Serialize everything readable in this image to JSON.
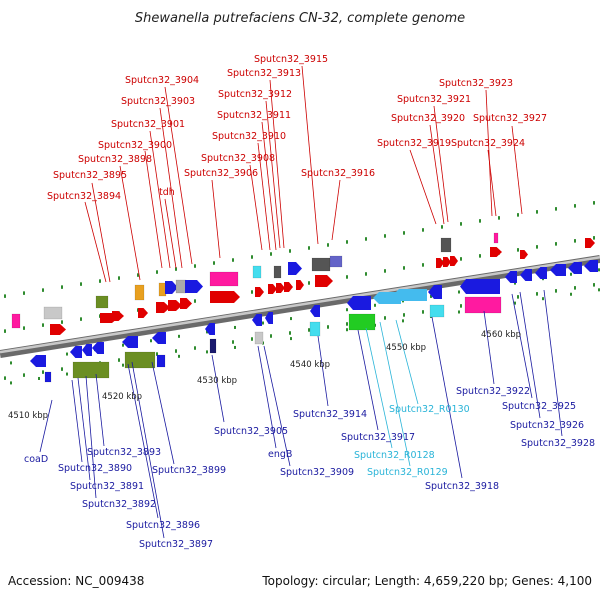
{
  "title": "Shewanella putrefaciens CN-32, complete genome",
  "accession": "Accession: NC_009438",
  "topology": "Topology: circular; Length: 4,659,220 bp; Genes: 4,100",
  "colors": {
    "top_label": "#cc0000",
    "bottom_label": "#1a1aa0",
    "rna_label": "#2ab4d8",
    "backbone": "#8c8c8c"
  },
  "kbp_ticks": [
    "4510 kbp",
    "4520 kbp",
    "4530 kbp",
    "4540 kbp",
    "4550 kbp",
    "4560 kbp"
  ],
  "top_genes": [
    "Sputcn32_3894",
    "Sputcn32_3895",
    "Sputcn32_3898",
    "Sputcn32_3900",
    "Sputcn32_3901",
    "tdh",
    "Sputcn32_3903",
    "Sputcn32_3904",
    "Sputcn32_3906",
    "Sputcn32_3908",
    "Sputcn32_3910",
    "Sputcn32_3911",
    "Sputcn32_3912",
    "Sputcn32_3913",
    "Sputcn32_3915",
    "Sputcn32_3916",
    "Sputcn32_3919",
    "Sputcn32_3920",
    "Sputcn32_3921",
    "Sputcn32_3923",
    "Sputcn32_3924",
    "Sputcn32_3927"
  ],
  "bottom_genes": [
    "coaD",
    "Sputcn32_3890",
    "Sputcn32_3891",
    "Sputcn32_3892",
    "Sputcn32_3893",
    "Sputcn32_3896",
    "Sputcn32_3897",
    "Sputcn32_3899",
    "Sputcn32_3905",
    "engB",
    "Sputcn32_3909",
    "Sputcn32_3914",
    "Sputcn32_3917",
    "Sputcn32_R0128",
    "Sputcn32_R0129",
    "Sputcn32_R0130",
    "Sputcn32_3918",
    "Sputcn32_3922",
    "Sputcn32_3925",
    "Sputcn32_3926",
    "Sputcn32_3928"
  ]
}
